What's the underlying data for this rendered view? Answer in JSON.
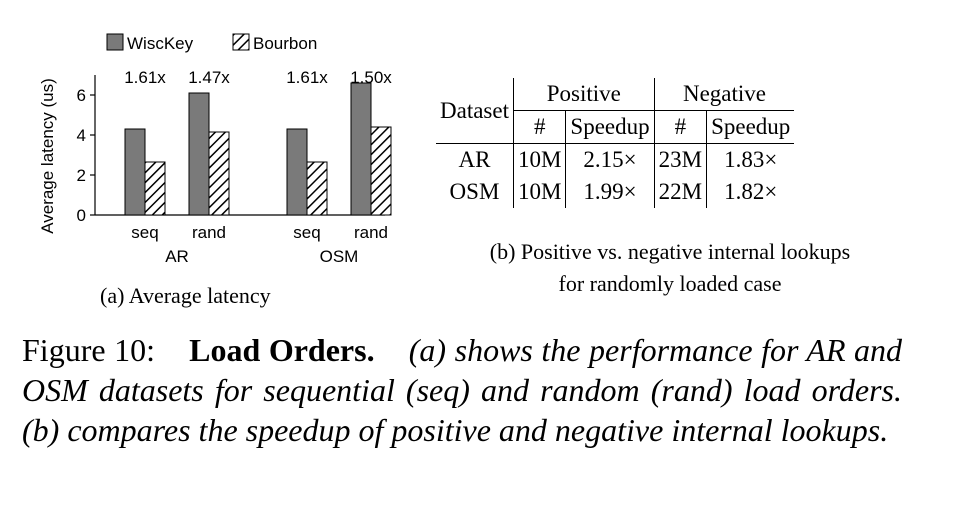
{
  "chart_data": {
    "type": "bar",
    "legend": [
      "WiscKey",
      "Bourbon"
    ],
    "legend_placement": "top-left",
    "ylabel": "Average latency (us)",
    "ylim": [
      0,
      7
    ],
    "yticks": [
      "0",
      "2",
      "4",
      "6"
    ],
    "groups": [
      {
        "name": "AR",
        "categories": [
          "seq",
          "rand"
        ],
        "series": [
          {
            "name": "WiscKey",
            "values": [
              4.3,
              6.1
            ]
          },
          {
            "name": "Bourbon",
            "values": [
              2.65,
              4.15
            ]
          }
        ],
        "annotations": [
          "1.61x",
          "1.47x"
        ]
      },
      {
        "name": "OSM",
        "categories": [
          "seq",
          "rand"
        ],
        "series": [
          {
            "name": "WiscKey",
            "values": [
              4.3,
              6.6
            ]
          },
          {
            "name": "Bourbon",
            "values": [
              2.65,
              4.4
            ]
          }
        ],
        "annotations": [
          "1.61x",
          "1.50x"
        ]
      }
    ],
    "colors": {
      "WiscKey": "#7a7a7a",
      "Bourbon": "#ffffff"
    }
  },
  "caption_a": "(a) Average latency",
  "table": {
    "header_dataset": "Dataset",
    "group_positive": "Positive",
    "group_negative": "Negative",
    "count_label": "#",
    "speedup_label": "Speedup",
    "rows": [
      {
        "dataset": "AR",
        "pos_count": "10M",
        "pos_speedup": "2.15×",
        "neg_count": "23M",
        "neg_speedup": "1.83×"
      },
      {
        "dataset": "OSM",
        "pos_count": "10M",
        "pos_speedup": "1.99×",
        "neg_count": "22M",
        "neg_speedup": "1.82×"
      }
    ]
  },
  "caption_b_line1": "(b) Positive vs. negative internal lookups",
  "caption_b_line2": "for randomly loaded case",
  "figure_caption": {
    "label": "Figure 10:",
    "title": "Load Orders.",
    "body": "(a) shows the performance for AR and OSM datasets for sequential (seq) and random (rand) load orders. (b) compares the speedup of positive and negative internal lookups."
  }
}
